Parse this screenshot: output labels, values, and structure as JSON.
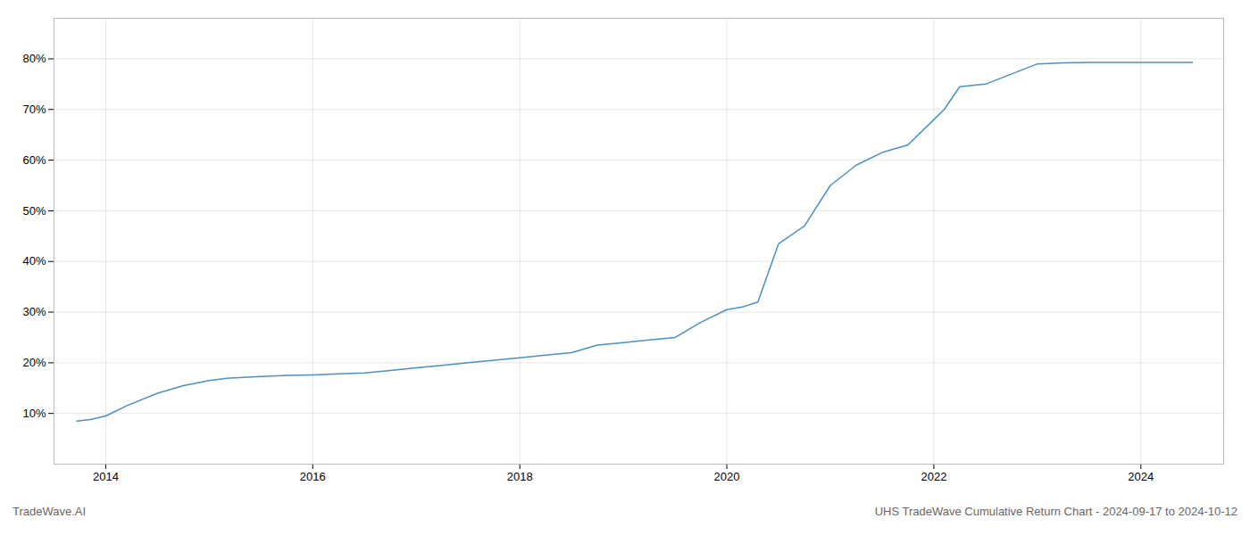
{
  "chart_data": {
    "type": "line",
    "title": "UHS TradeWave Cumulative Return Chart - 2024-09-17 to 2024-10-12",
    "subtitle": "TradeWave.AI",
    "x": [
      2013.72,
      2013.85,
      2014.0,
      2014.2,
      2014.5,
      2014.75,
      2015.0,
      2015.2,
      2015.5,
      2015.75,
      2016.0,
      2016.25,
      2016.5,
      2016.75,
      2017.0,
      2017.25,
      2017.5,
      2017.75,
      2018.0,
      2018.25,
      2018.5,
      2018.75,
      2019.0,
      2019.25,
      2019.5,
      2019.75,
      2020.0,
      2020.15,
      2020.3,
      2020.5,
      2020.75,
      2021.0,
      2021.25,
      2021.5,
      2021.75,
      2022.0,
      2022.1,
      2022.25,
      2022.5,
      2023.0,
      2023.25,
      2023.5,
      2024.0,
      2024.5
    ],
    "values": [
      8.5,
      8.8,
      9.5,
      11.5,
      14.0,
      15.5,
      16.5,
      17.0,
      17.3,
      17.5,
      17.6,
      17.8,
      18.0,
      18.5,
      19.0,
      19.5,
      20.0,
      20.5,
      21.0,
      21.5,
      22.0,
      23.5,
      24.0,
      24.5,
      25.0,
      28.0,
      30.5,
      31.0,
      32.0,
      43.5,
      47.0,
      55.0,
      59.0,
      61.5,
      63.0,
      68.0,
      70.0,
      74.5,
      75.0,
      79.0,
      79.2,
      79.3,
      79.3,
      79.3
    ],
    "color": "#4a90c4",
    "xlim": [
      2013.5,
      2024.8
    ],
    "ylim": [
      0,
      88
    ],
    "xticks": [
      2014,
      2016,
      2018,
      2020,
      2022,
      2024
    ],
    "yticks": [
      {
        "value": 10,
        "label": "10%"
      },
      {
        "value": 20,
        "label": "20%"
      },
      {
        "value": 30,
        "label": "30%"
      },
      {
        "value": 40,
        "label": "40%"
      },
      {
        "value": 50,
        "label": "50%"
      },
      {
        "value": 60,
        "label": "60%"
      },
      {
        "value": 70,
        "label": "70%"
      },
      {
        "value": 80,
        "label": "80%"
      }
    ],
    "grid": true
  }
}
